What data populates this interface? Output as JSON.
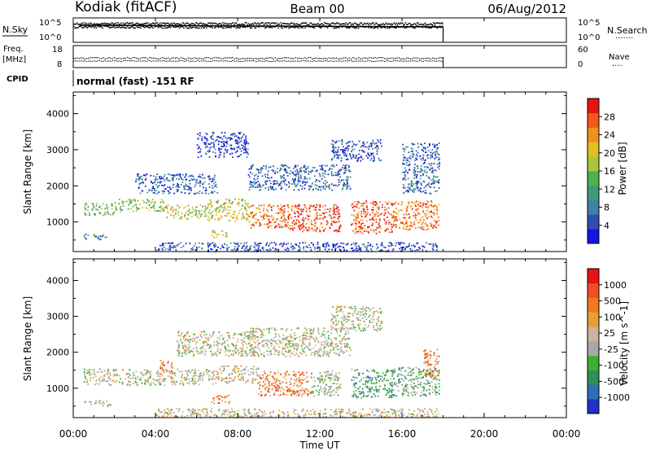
{
  "header": {
    "station": "Kodiak (fitACF)",
    "beam": "Beam 00",
    "date": "06/Aug/2012"
  },
  "colors": {
    "power_scale": [
      "#1414e6",
      "#2e4fb0",
      "#3f7fa8",
      "#3f9a7a",
      "#52b04e",
      "#a6c83a",
      "#e0c020",
      "#f09020",
      "#f05a14",
      "#e61414"
    ],
    "velocity_scale": [
      "#2030c8",
      "#2e6eb4",
      "#2f8f58",
      "#3cb030",
      "#a8a8a8",
      "#c8b4a0",
      "#e8a030",
      "#f07820",
      "#f05020",
      "#e61414"
    ]
  },
  "chart_data": [
    {
      "type": "line",
      "title": "",
      "y_left_label": "N.Sky",
      "y_left_ticks": [
        "10^5",
        "10^0"
      ],
      "y_right_label": "N.Search",
      "y_right_ticks": [
        "10^5",
        "10^0"
      ],
      "x_range_hours": [
        0,
        24
      ],
      "data_end_hour": 18,
      "note": "noise levels (dense point series)"
    },
    {
      "type": "line",
      "y_left_label": "Freq.",
      "y_left_unit": "[MHz]",
      "y_left_ticks": [
        18,
        8
      ],
      "y_right_label": "Nave",
      "y_right_ticks": [
        60,
        0
      ],
      "x_range_hours": [
        0,
        24
      ],
      "data_end_hour": 18
    },
    {
      "type": "table",
      "y_left_label": "CPID",
      "text": "normal (fast) -151 RF"
    },
    {
      "type": "heatmap",
      "ylabel": "Slant Range [km]",
      "yticks": [
        1000,
        2000,
        3000,
        4000
      ],
      "ylim": [
        180,
        4600
      ],
      "x_range_hours": [
        0,
        24
      ],
      "colorbar_label": "Power [dB]",
      "colorbar_ticks": [
        4,
        8,
        12,
        16,
        20,
        24,
        28
      ],
      "colorbar_range": [
        0,
        32
      ],
      "bands": [
        {
          "t0": 0.5,
          "t1": 2.0,
          "r0": 1200,
          "r1": 1550,
          "level": 0.45
        },
        {
          "t0": 2.0,
          "t1": 4.5,
          "r0": 1300,
          "r1": 1650,
          "level": 0.5
        },
        {
          "t0": 4.5,
          "t1": 6.5,
          "r0": 1100,
          "r1": 1500,
          "level": 0.55
        },
        {
          "t0": 6.5,
          "t1": 8.5,
          "r0": 1050,
          "r1": 1650,
          "level": 0.6
        },
        {
          "t0": 8.5,
          "t1": 10.5,
          "r0": 850,
          "r1": 1500,
          "level": 0.8
        },
        {
          "t0": 10.5,
          "t1": 13.0,
          "r0": 750,
          "r1": 1500,
          "level": 0.9
        },
        {
          "t0": 13.5,
          "t1": 15.5,
          "r0": 700,
          "r1": 1600,
          "level": 0.85
        },
        {
          "t0": 15.5,
          "t1": 17.8,
          "r0": 800,
          "r1": 1600,
          "level": 0.8
        },
        {
          "t0": 0.5,
          "t1": 1.8,
          "r0": 520,
          "r1": 680,
          "level": 0.25
        },
        {
          "t0": 6.7,
          "t1": 7.5,
          "r0": 580,
          "r1": 800,
          "level": 0.55
        },
        {
          "t0": 3.0,
          "t1": 7.0,
          "r0": 1800,
          "r1": 2350,
          "level": 0.2
        },
        {
          "t0": 8.5,
          "t1": 13.5,
          "r0": 1900,
          "r1": 2600,
          "level": 0.2
        },
        {
          "t0": 12.5,
          "t1": 15.0,
          "r0": 2700,
          "r1": 3300,
          "level": 0.15
        },
        {
          "t0": 6.0,
          "t1": 8.5,
          "r0": 2800,
          "r1": 3500,
          "level": 0.12
        },
        {
          "t0": 16.0,
          "t1": 17.8,
          "r0": 1800,
          "r1": 3200,
          "level": 0.2
        },
        {
          "t0": 4.0,
          "t1": 17.8,
          "r0": 200,
          "r1": 450,
          "level": 0.15
        }
      ]
    },
    {
      "type": "heatmap",
      "ylabel": "Slant Range [km]",
      "yticks": [
        1000,
        2000,
        3000,
        4000
      ],
      "ylim": [
        180,
        4600
      ],
      "x_range_hours": [
        0,
        24
      ],
      "xticks": [
        "00:00",
        "04:00",
        "08:00",
        "12:00",
        "16:00",
        "20:00",
        "00:00"
      ],
      "xlabel": "Time UT",
      "colorbar_label": "Velocity [m s^-1]",
      "colorbar_ticks": [
        1000,
        500,
        100,
        25,
        -25,
        -100,
        -500,
        -1000
      ],
      "bands": [
        {
          "t0": 0.5,
          "t1": 7.0,
          "r0": 1100,
          "r1": 1550,
          "level": 0.5
        },
        {
          "t0": 7.0,
          "t1": 9.0,
          "r0": 1150,
          "r1": 1650,
          "level": 0.55
        },
        {
          "t0": 9.0,
          "t1": 11.5,
          "r0": 800,
          "r1": 1500,
          "level": 0.75
        },
        {
          "t0": 11.5,
          "t1": 13.0,
          "r0": 800,
          "r1": 1500,
          "level": 0.45
        },
        {
          "t0": 13.5,
          "t1": 15.5,
          "r0": 750,
          "r1": 1550,
          "level": 0.3
        },
        {
          "t0": 15.5,
          "t1": 17.8,
          "r0": 800,
          "r1": 1600,
          "level": 0.35
        },
        {
          "t0": 4.2,
          "t1": 4.8,
          "r0": 1400,
          "r1": 1800,
          "level": 0.75
        },
        {
          "t0": 6.7,
          "t1": 7.6,
          "r0": 580,
          "r1": 820,
          "level": 0.75
        },
        {
          "t0": 0.5,
          "t1": 1.8,
          "r0": 520,
          "r1": 680,
          "level": 0.5
        },
        {
          "t0": 5.0,
          "t1": 9.0,
          "r0": 1900,
          "r1": 2600,
          "level": 0.5
        },
        {
          "t0": 8.5,
          "t1": 13.5,
          "r0": 1900,
          "r1": 2700,
          "level": 0.5
        },
        {
          "t0": 12.5,
          "t1": 15.0,
          "r0": 2600,
          "r1": 3300,
          "level": 0.5
        },
        {
          "t0": 17.0,
          "t1": 17.8,
          "r0": 1300,
          "r1": 2100,
          "level": 0.75
        },
        {
          "t0": 4.0,
          "t1": 17.8,
          "r0": 200,
          "r1": 450,
          "level": 0.55
        }
      ]
    }
  ]
}
